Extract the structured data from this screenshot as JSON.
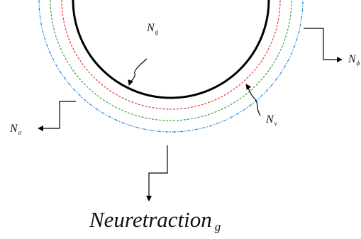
{
  "labels": {
    "ng": {
      "main": "N",
      "sub": "g"
    },
    "nv": {
      "main": "N",
      "sub": "v"
    },
    "nsigma": {
      "main": "N",
      "sub": "σ"
    },
    "nphi": {
      "main": "N",
      "sub": "ϕ"
    }
  },
  "caption": {
    "main": "Neuretraction",
    "sub": "g"
  },
  "colors": {
    "inner_arc": "#000000",
    "red_arc": "#e53935",
    "green_arc": "#43a047",
    "blue_arc": "#1e88e5",
    "arrows": "#000000"
  }
}
